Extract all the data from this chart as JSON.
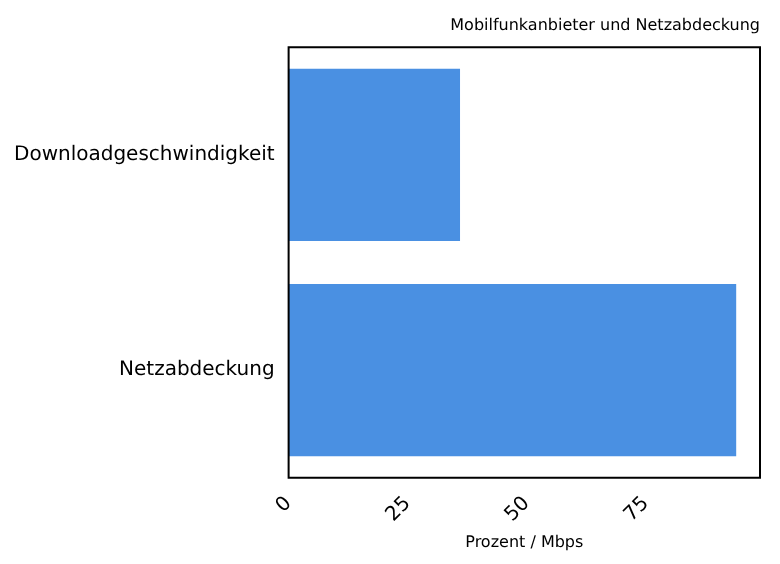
{
  "chart_data": {
    "type": "bar",
    "orientation": "horizontal",
    "title": "Mobilfunkanbieter und Netzabdeckung",
    "xlabel": "Prozent / Mbps",
    "categories": [
      "Downloadgeschwindigkeit",
      "Netzabdeckung"
    ],
    "values": [
      36,
      94
    ],
    "color": "#4a90e2",
    "xlim": [
      0,
      99
    ],
    "xticks": [
      0,
      25,
      50,
      75
    ],
    "grid": false,
    "legend": false
  }
}
